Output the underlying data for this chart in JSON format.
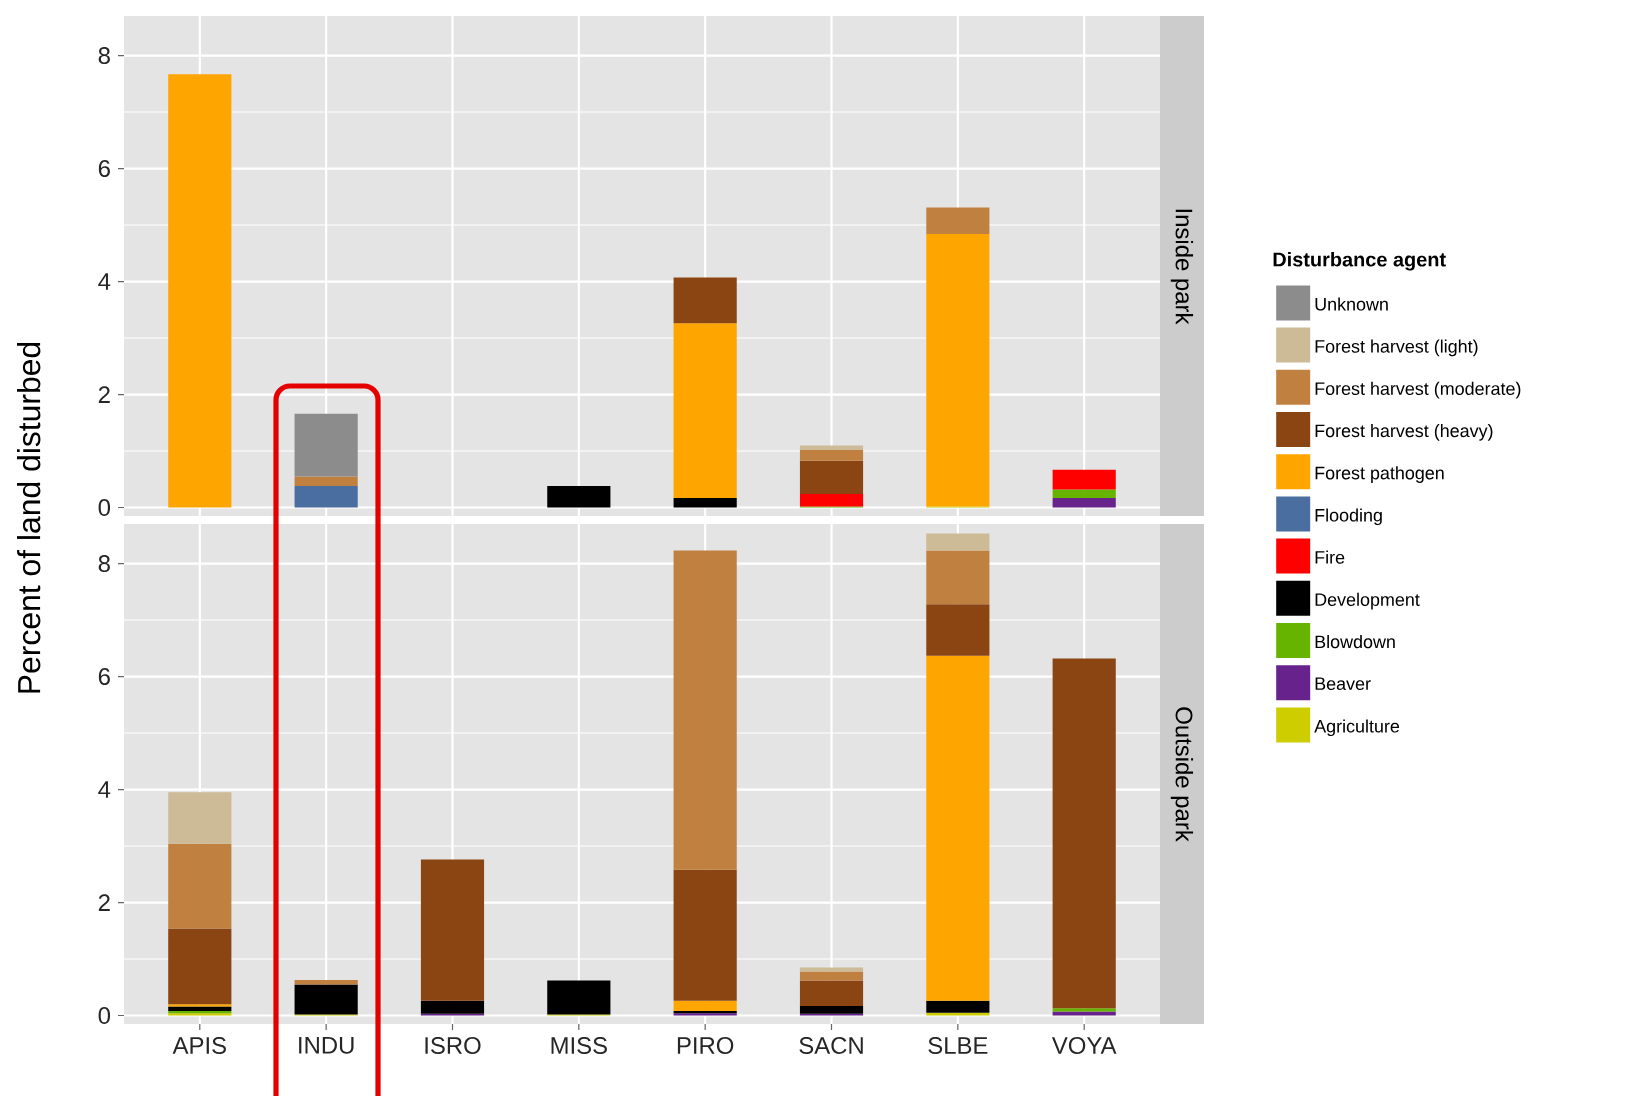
{
  "chart_data": [
    {
      "type": "bar",
      "stacked": true,
      "title": "Inside park",
      "ylabel": "Percent of land disturbed",
      "legend_title": "Disturbance agent",
      "legend": "right",
      "grid": true,
      "tick_labels": "y",
      "categories": [
        null,
        null,
        null,
        null,
        null,
        null,
        null,
        null
      ],
      "ylim": [
        -0.15,
        8.7
      ],
      "yticks": [
        0,
        2,
        4,
        6,
        8
      ],
      "series": [
        {
          "name": "Agriculture",
          "color": "#cdcd00",
          "values": [
            null,
            null,
            null,
            null,
            null,
            null,
            0.02,
            null
          ]
        },
        {
          "name": "Beaver",
          "color": "#68228b",
          "values": [
            null,
            null,
            null,
            null,
            null,
            null,
            null,
            0.17
          ]
        },
        {
          "name": "Blowdown",
          "color": "#66b300",
          "values": [
            null,
            null,
            null,
            null,
            null,
            0.02,
            null,
            0.15
          ]
        },
        {
          "name": "Development",
          "color": "#000000",
          "values": [
            null,
            null,
            null,
            0.38,
            0.17,
            null,
            null,
            null
          ]
        },
        {
          "name": "Fire",
          "color": "#ff0000",
          "values": [
            null,
            null,
            null,
            null,
            null,
            0.22,
            null,
            0.35
          ]
        },
        {
          "name": "Flooding",
          "color": "#4a6ea0",
          "values": [
            null,
            0.38,
            null,
            null,
            null,
            null,
            null,
            null
          ]
        },
        {
          "name": "Forest pathogen",
          "color": "#ffa500",
          "values": [
            7.67,
            null,
            null,
            null,
            3.09,
            null,
            4.82,
            null
          ]
        },
        {
          "name": "Forest harvest (heavy)",
          "color": "#8b4513",
          "values": [
            null,
            null,
            null,
            null,
            0.81,
            0.59,
            null,
            null
          ]
        },
        {
          "name": "Forest harvest (moderate)",
          "color": "#c08040",
          "values": [
            null,
            0.17,
            null,
            null,
            null,
            0.19,
            0.47,
            null
          ]
        },
        {
          "name": "Forest harvest (light)",
          "color": "#cdba96",
          "values": [
            null,
            null,
            null,
            null,
            null,
            0.08,
            null,
            null
          ]
        },
        {
          "name": "Unknown",
          "color": "#8c8c8c",
          "values": [
            null,
            1.11,
            null,
            null,
            null,
            null,
            null,
            null
          ]
        }
      ]
    },
    {
      "type": "bar",
      "stacked": true,
      "title": "Outside park",
      "grid": true,
      "categories": [
        "APIS",
        "INDU",
        "ISRO",
        "MISS",
        "PIRO",
        "SACN",
        "SLBE",
        "VOYA"
      ],
      "ylim": [
        -0.15,
        8.7
      ],
      "yticks": [
        0,
        2,
        4,
        6,
        8
      ],
      "series": [
        {
          "color": "#cdcd00",
          "values": [
            0.04,
            0.02,
            null,
            0.02,
            null,
            null,
            0.05,
            null
          ]
        },
        {
          "color": "#68228b",
          "values": [
            null,
            null,
            0.03,
            null,
            0.04,
            0.03,
            null,
            0.07
          ]
        },
        {
          "color": "#66b300",
          "values": [
            0.04,
            null,
            null,
            null,
            null,
            null,
            null,
            0.06
          ]
        },
        {
          "color": "#000000",
          "values": [
            0.08,
            0.53,
            0.23,
            0.6,
            0.04,
            0.14,
            0.21,
            null
          ]
        },
        {
          "color": "#ffa500",
          "values": [
            0.04,
            null,
            null,
            null,
            0.18,
            null,
            6.11,
            null
          ]
        },
        {
          "color": "#8b4513",
          "values": [
            1.34,
            null,
            2.5,
            null,
            2.32,
            0.45,
            0.91,
            6.19
          ]
        },
        {
          "color": "#c08040",
          "values": [
            1.5,
            0.08,
            null,
            null,
            5.65,
            0.16,
            0.95,
            null
          ]
        },
        {
          "color": "#cdba96",
          "values": [
            0.91,
            null,
            null,
            null,
            null,
            0.07,
            0.3,
            null
          ]
        }
      ]
    }
  ]
}
